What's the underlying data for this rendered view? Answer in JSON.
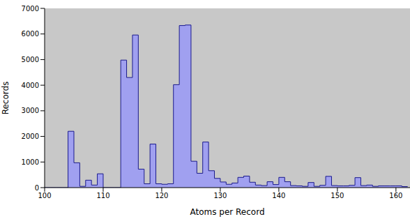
{
  "chart_data": {
    "type": "histogram",
    "x_label": "Atoms per Record",
    "y_label": "Records",
    "bins": [
      100,
      101,
      102,
      103,
      104,
      105,
      106,
      107,
      108,
      109,
      110,
      111,
      112,
      113,
      114,
      115,
      116,
      117,
      118,
      119,
      120,
      121,
      122,
      123,
      124,
      125,
      126,
      127,
      128,
      129,
      130,
      131,
      132,
      133,
      134,
      135,
      136,
      137,
      138,
      139,
      140,
      141,
      142,
      143,
      144,
      145,
      146,
      147,
      148,
      149,
      150,
      151,
      152,
      153,
      154,
      155,
      156,
      157,
      158,
      159,
      160,
      161,
      162
    ],
    "counts": [
      0,
      0,
      0,
      0,
      2200,
      970,
      50,
      290,
      100,
      540,
      0,
      0,
      0,
      4980,
      4300,
      5960,
      720,
      150,
      1700,
      150,
      130,
      150,
      4020,
      6330,
      6350,
      1030,
      560,
      1780,
      660,
      360,
      220,
      130,
      180,
      400,
      450,
      210,
      100,
      80,
      230,
      120,
      400,
      230,
      80,
      70,
      50,
      200,
      50,
      90,
      440,
      80,
      70,
      70,
      90,
      390,
      80,
      100,
      50,
      70,
      70,
      70,
      70,
      40
    ],
    "color": "#a0a0f0",
    "xlim": [
      100,
      162.4
    ],
    "xticks": [
      100,
      110,
      120,
      130,
      140,
      150,
      160
    ],
    "ylim": [
      0,
      7000
    ],
    "yticks": [
      0,
      1000,
      2000,
      3000,
      4000,
      5000,
      6000,
      7000
    ],
    "grid": false
  }
}
